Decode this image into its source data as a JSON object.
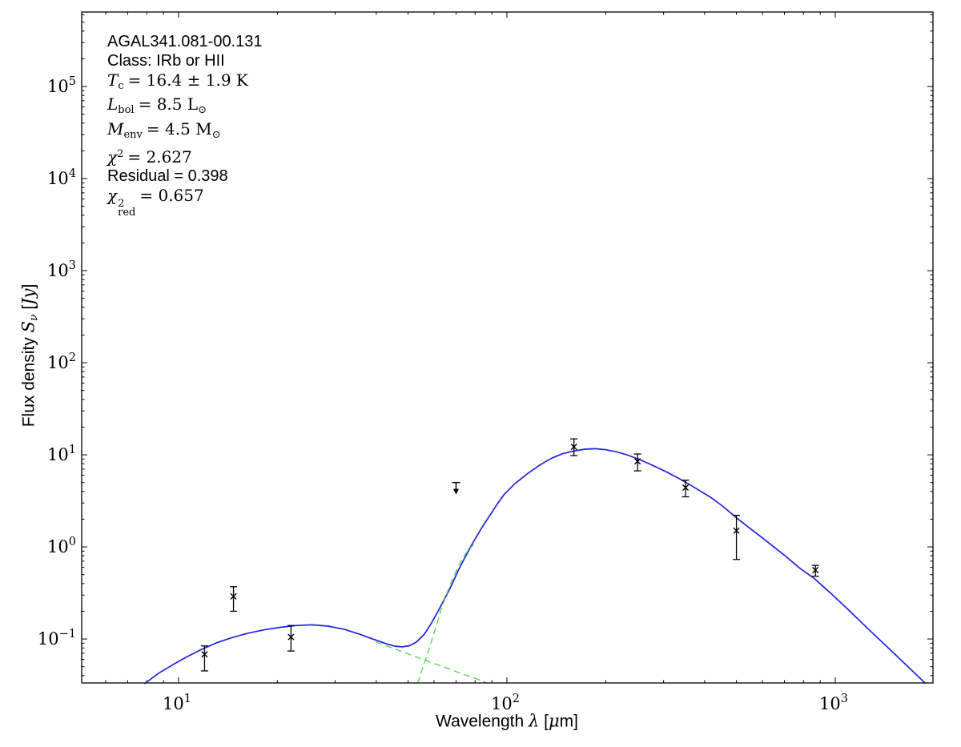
{
  "chart_data": {
    "type": "line",
    "title": "AGAL341.081-00.131",
    "annotation": {
      "source_name": "AGAL341.081-00.131",
      "class_line": "Class: IRb or HII",
      "tc": {
        "sym": "T",
        "sub": "c",
        "rhs": "= 16.4 ± 1.9 K"
      },
      "lbol": {
        "sym": "L",
        "sub": "bol",
        "rhs": "= 8.5 L",
        "rhs_sub": "⊙"
      },
      "menv": {
        "sym": "M",
        "sub": "env",
        "rhs": "= 4.5 M",
        "rhs_sub": "⊙"
      },
      "chi2": {
        "sym": "χ",
        "sup": "2",
        "rhs": "= 2.627"
      },
      "residual": "Residual = 0.398",
      "chi2red": {
        "sym": "χ",
        "sup": "2",
        "sub": "red",
        "rhs": "= 0.657"
      }
    },
    "xlabel_parts": {
      "prefix": "Wavelength ",
      "sym": "λ",
      "open": " [",
      "mu": "μ",
      "unit": "m",
      "close": "]"
    },
    "ylabel_parts": {
      "prefix": "Flux density ",
      "sym": "S",
      "sub": "ν",
      "open": " [",
      "unit": "Jy",
      "close": "]"
    },
    "axes": {
      "x_scale": "log",
      "y_scale": "log",
      "grid": false,
      "x_range": [
        5.07,
        1984
      ],
      "y_range": [
        0.0333,
        644000
      ]
    },
    "tick_base": "10",
    "x_major_ticks": [
      {
        "value": 10,
        "exp": "1"
      },
      {
        "value": 100,
        "exp": "2"
      },
      {
        "value": 1000,
        "exp": "3"
      }
    ],
    "y_major_ticks": [
      {
        "value": 100000,
        "exp": "5"
      },
      {
        "value": 10000,
        "exp": "4"
      },
      {
        "value": 1000,
        "exp": "3"
      },
      {
        "value": 100,
        "exp": "2"
      },
      {
        "value": 10,
        "exp": "1"
      },
      {
        "value": 1,
        "exp": "0"
      },
      {
        "value": 0.1,
        "exp": "−1"
      }
    ],
    "colors": {
      "model_total": "#2222dd",
      "components": "#55dd55",
      "data": "#000000",
      "axis": "#000000"
    },
    "series": [
      {
        "name": "model_total",
        "style": "solid",
        "points": [
          [
            7.9,
            0.033
          ],
          [
            8.7,
            0.0425
          ],
          [
            9.6,
            0.0525
          ],
          [
            10.6,
            0.064
          ],
          [
            11.7,
            0.0765
          ],
          [
            13,
            0.0905
          ],
          [
            14.5,
            0.103
          ],
          [
            16.2,
            0.115
          ],
          [
            18.2,
            0.1255
          ],
          [
            20.4,
            0.134
          ],
          [
            22.8,
            0.14
          ],
          [
            25.5,
            0.1425
          ],
          [
            28.5,
            0.138
          ],
          [
            32,
            0.127
          ],
          [
            35.8,
            0.112
          ],
          [
            38,
            0.1035
          ],
          [
            40.5,
            0.0955
          ],
          [
            43,
            0.0885
          ],
          [
            45.5,
            0.0835
          ],
          [
            48,
            0.0822
          ],
          [
            50.5,
            0.0845
          ],
          [
            53,
            0.0925
          ],
          [
            56,
            0.112
          ],
          [
            59,
            0.15
          ],
          [
            62,
            0.207
          ],
          [
            65,
            0.285
          ],
          [
            68,
            0.39
          ],
          [
            71,
            0.55
          ],
          [
            75,
            0.8
          ],
          [
            79,
            1.13
          ],
          [
            84,
            1.63
          ],
          [
            88,
            2.1
          ],
          [
            93,
            2.85
          ],
          [
            98,
            3.7
          ],
          [
            106,
            4.9
          ],
          [
            116,
            6.3
          ],
          [
            126,
            7.75
          ],
          [
            137,
            9.2
          ],
          [
            148,
            10.3
          ],
          [
            160,
            11.0
          ],
          [
            172,
            11.5
          ],
          [
            185,
            11.65
          ],
          [
            200,
            11.35
          ],
          [
            215,
            10.8
          ],
          [
            232,
            10.0
          ],
          [
            250,
            9.05
          ],
          [
            270,
            8.05
          ],
          [
            290,
            7.15
          ],
          [
            312,
            6.3
          ],
          [
            335,
            5.5
          ],
          [
            360,
            4.75
          ],
          [
            390,
            4.0
          ],
          [
            420,
            3.4
          ],
          [
            455,
            2.75
          ],
          [
            500,
            2.07
          ],
          [
            545,
            1.63
          ],
          [
            595,
            1.28
          ],
          [
            650,
            1.0
          ],
          [
            710,
            0.78
          ],
          [
            780,
            0.585
          ],
          [
            860,
            0.46
          ],
          [
            983,
            0.3
          ],
          [
            1100,
            0.205
          ],
          [
            1250,
            0.132
          ],
          [
            1450,
            0.08
          ],
          [
            1700,
            0.0465
          ],
          [
            1876,
            0.0333
          ]
        ]
      },
      {
        "name": "component_warm",
        "style": "dashed",
        "points": [
          [
            40,
            0.0925
          ],
          [
            46,
            0.077
          ],
          [
            52,
            0.0655
          ],
          [
            58,
            0.0565
          ],
          [
            65,
            0.049
          ],
          [
            72,
            0.0425
          ],
          [
            80,
            0.0375
          ],
          [
            87,
            0.0333
          ]
        ]
      },
      {
        "name": "component_cold",
        "style": "dashed",
        "points": [
          [
            53.5,
            0.0333
          ],
          [
            55.5,
            0.049
          ],
          [
            57.5,
            0.072
          ],
          [
            59.5,
            0.105
          ],
          [
            61.5,
            0.155
          ],
          [
            63.5,
            0.225
          ],
          [
            66,
            0.33
          ],
          [
            68.5,
            0.46
          ],
          [
            71.5,
            0.64
          ],
          [
            75,
            0.85
          ],
          [
            79,
            1.05
          ]
        ]
      }
    ],
    "data_points": [
      {
        "x": 12,
        "y": 0.068,
        "y_lo": 0.045,
        "y_hi": 0.084
      },
      {
        "x": 14.7,
        "y": 0.29,
        "y_lo": 0.2,
        "y_hi": 0.37
      },
      {
        "x": 22,
        "y": 0.105,
        "y_lo": 0.074,
        "y_hi": 0.14
      },
      {
        "x": 70,
        "y": 5.0,
        "upper_limit": true
      },
      {
        "x": 160,
        "y": 12.2,
        "y_lo": 9.8,
        "y_hi": 14.9
      },
      {
        "x": 250,
        "y": 8.5,
        "y_lo": 6.7,
        "y_hi": 10.2
      },
      {
        "x": 350,
        "y": 4.4,
        "y_lo": 3.5,
        "y_hi": 5.3
      },
      {
        "x": 500,
        "y": 1.5,
        "y_lo": 0.73,
        "y_hi": 2.2
      },
      {
        "x": 870,
        "y": 0.56,
        "y_lo": 0.48,
        "y_hi": 0.63
      }
    ]
  }
}
